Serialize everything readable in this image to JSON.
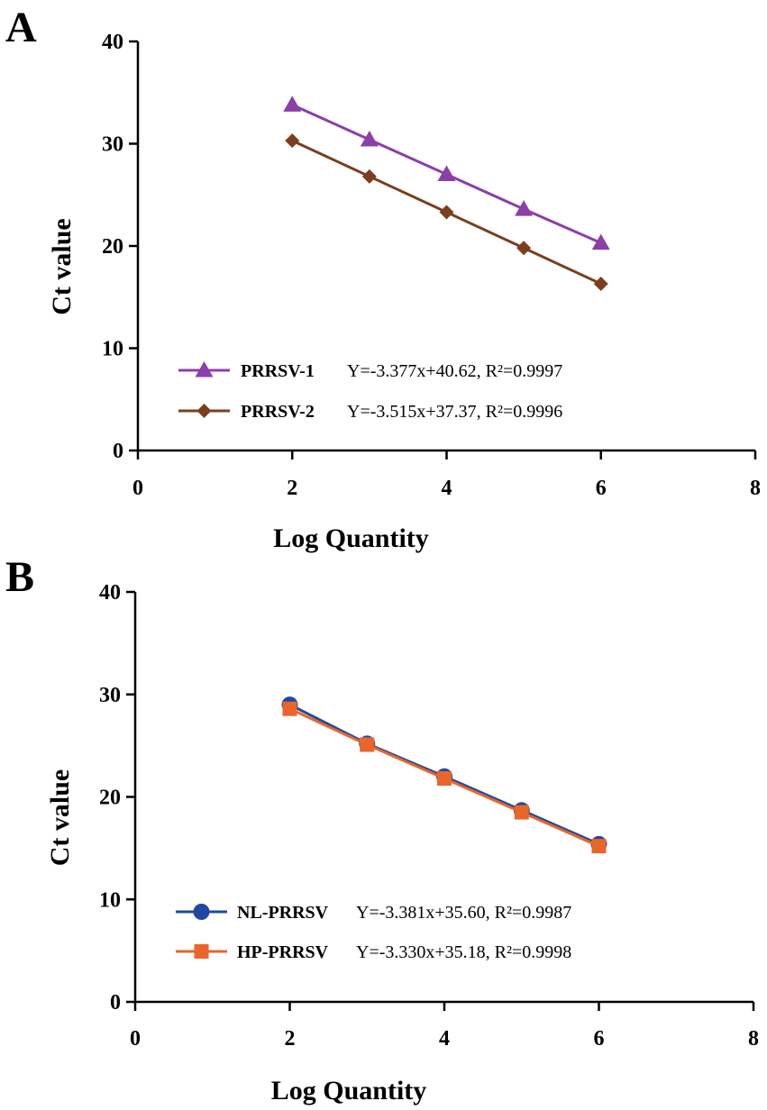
{
  "figure": {
    "panel_labels": [
      "A",
      "B"
    ]
  },
  "chart_data": [
    {
      "type": "line",
      "panel": "A",
      "xlabel": "Log Quantity",
      "ylabel": "Ct value",
      "xlim": [
        0,
        8
      ],
      "ylim": [
        0,
        40
      ],
      "x_ticks": [
        "0",
        "2",
        "4",
        "6",
        "8"
      ],
      "y_ticks": [
        "0",
        "10",
        "20",
        "30",
        "40"
      ],
      "grid": false,
      "legend_position": "bottom-left",
      "series": [
        {
          "name": "PRRSV-1",
          "equation": "Y=-3.377x+40.62, R²=0.9997",
          "color": "#8B3FA8",
          "marker": "triangle",
          "x": [
            2,
            3,
            4,
            5,
            6
          ],
          "y": [
            33.8,
            30.4,
            27.0,
            23.6,
            20.3
          ]
        },
        {
          "name": "PRRSV-2",
          "equation": "Y=-3.515x+37.37, R²=0.9996",
          "color": "#7A3F1F",
          "marker": "diamond",
          "x": [
            2,
            3,
            4,
            5,
            6
          ],
          "y": [
            30.3,
            26.8,
            23.3,
            19.8,
            16.3
          ]
        }
      ]
    },
    {
      "type": "line",
      "panel": "B",
      "xlabel": "Log Quantity",
      "ylabel": "Ct value",
      "xlim": [
        0,
        8
      ],
      "ylim": [
        0,
        40
      ],
      "x_ticks": [
        "0",
        "2",
        "4",
        "6",
        "8"
      ],
      "y_ticks": [
        "0",
        "10",
        "20",
        "30",
        "40"
      ],
      "grid": false,
      "legend_position": "bottom-left",
      "series": [
        {
          "name": "NL-PRRSV",
          "equation": "Y=-3.381x+35.60, R²=0.9987",
          "color": "#2149A3",
          "marker": "circle",
          "x": [
            2,
            3,
            4,
            5,
            6
          ],
          "y": [
            29.0,
            25.2,
            22.0,
            18.7,
            15.4
          ]
        },
        {
          "name": "HP-PRRSV",
          "equation": "Y=-3.330x+35.18, R²=0.9998",
          "color": "#E8662A",
          "marker": "square",
          "x": [
            2,
            3,
            4,
            5,
            6
          ],
          "y": [
            28.6,
            25.1,
            21.8,
            18.5,
            15.2
          ]
        }
      ]
    }
  ]
}
